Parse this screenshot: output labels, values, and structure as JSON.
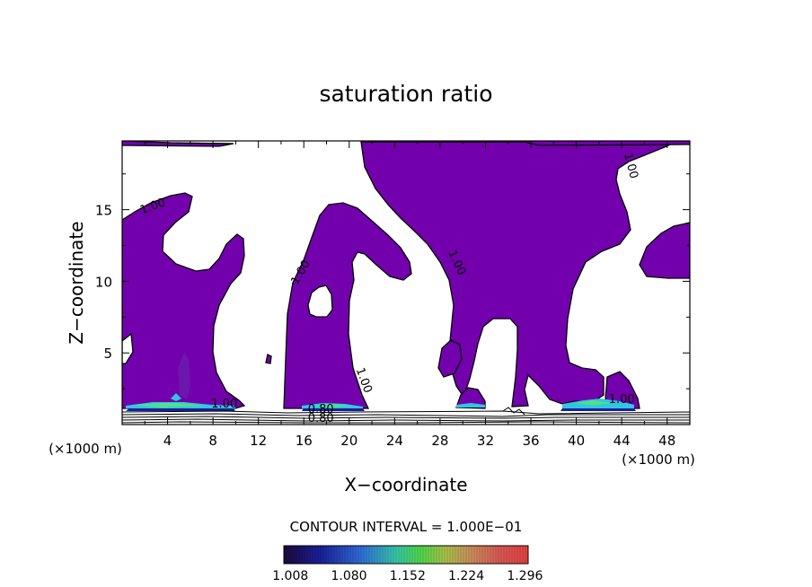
{
  "chart_data": {
    "type": "contour",
    "title": "saturation ratio",
    "xlabel": "X−coordinate",
    "ylabel": "Z−coordinate",
    "x_unit": "(×1000 m)",
    "z_unit": "(×1000 m)",
    "xlim": [
      0,
      50
    ],
    "ylim": [
      0,
      19.8
    ],
    "xticks": [
      "4",
      "8",
      "12",
      "16",
      "20",
      "24",
      "28",
      "32",
      "36",
      "40",
      "44",
      "48"
    ],
    "yticks": [
      "5",
      "10",
      "15"
    ],
    "contour_labels": [
      {
        "text": "1.00",
        "x": 2.8,
        "z": 15.0
      },
      {
        "text": "1.00",
        "x": 16.0,
        "z": 10.5
      },
      {
        "text": "1.00",
        "x": 29.2,
        "z": 11.2
      },
      {
        "text": "1.00",
        "x": 44.5,
        "z": 18.0
      },
      {
        "text": "1.00",
        "x": 21.0,
        "z": 3.0
      },
      {
        "text": "1.00",
        "x": 9.0,
        "z": 1.2
      },
      {
        "text": "0.80",
        "x": 17.5,
        "z": 0.8
      },
      {
        "text": "0.80",
        "x": 17.5,
        "z": 0.2
      },
      {
        "text": "1.00",
        "x": 44.0,
        "z": 1.5
      }
    ],
    "contour_interval": "CONTOUR INTERVAL = 1.000E−01",
    "colorbar": {
      "ticks": [
        "1.008",
        "1.080",
        "1.152",
        "1.224",
        "1.296"
      ],
      "range": [
        1.0,
        1.3
      ]
    },
    "colors": {
      "supersaturated_fill": "#7300ad",
      "band_cyan": "#2fc7e0",
      "band_green": "#4ee08a"
    }
  }
}
